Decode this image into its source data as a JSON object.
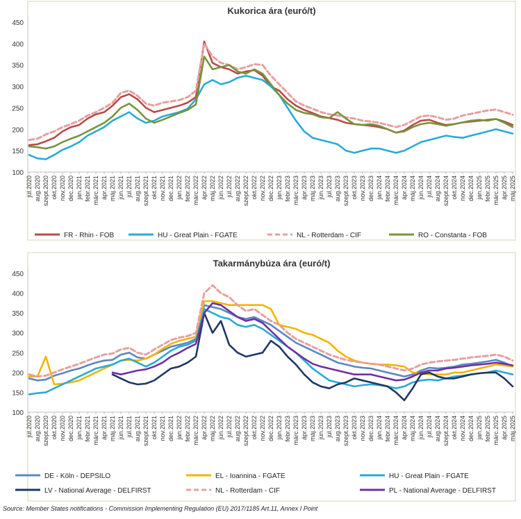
{
  "chart_data": [
    {
      "type": "line",
      "title": "Kukorica ára (euró/t)",
      "ylim": [
        100,
        450
      ],
      "yticks": [
        100,
        150,
        200,
        250,
        300,
        350,
        400,
        450
      ],
      "xlabels": [
        "júl.2020",
        "aug.2020",
        "szept.2020",
        "okt.2020",
        "nov.2020",
        "dec.2020",
        "jan.2021",
        "febr.2021",
        "márc.2021",
        "ápr.2021",
        "máj.2021",
        "jún.2021",
        "júl.2021",
        "aug.2021",
        "szept.2021",
        "okt.2021",
        "nov.2021",
        "dec.2021",
        "jan.2022",
        "febr.2022",
        "márc.2022",
        "ápr.2022",
        "máj.2022",
        "jún.2022",
        "júl.2022",
        "aug.2022",
        "szept.2022",
        "okt.2022",
        "nov.2022",
        "dec.2022",
        "jan.2023",
        "febr.2023",
        "márc.2023",
        "ápr.2023",
        "máj.2023",
        "jún.2023",
        "júl.2023",
        "aug.2023",
        "szept.2023",
        "okt.2023",
        "nov.2023",
        "dec.2023",
        "jan.2024",
        "febr.2024",
        "márc.2024",
        "ápr.2024",
        "máj.2024",
        "jún.2024",
        "júl.2024",
        "aug.2024",
        "szept.2024",
        "okt.2024",
        "nov.2024",
        "dec.2024",
        "jan.2025",
        "febr.2025",
        "márc.2025",
        "ápr.2025",
        "máj.2025"
      ],
      "series": [
        {
          "name": "FR - Rhin - FOB",
          "color": "#b94a48",
          "style": "solid",
          "values": [
            163,
            165,
            172,
            180,
            195,
            205,
            210,
            225,
            235,
            240,
            255,
            275,
            282,
            270,
            250,
            240,
            245,
            250,
            255,
            262,
            275,
            405,
            355,
            345,
            340,
            330,
            335,
            338,
            325,
            300,
            290,
            270,
            255,
            245,
            238,
            230,
            226,
            222,
            215,
            212,
            210,
            208,
            205,
            200,
            192,
            197,
            210,
            220,
            222,
            215,
            210,
            212,
            216,
            218,
            220,
            222,
            224,
            218,
            210
          ]
        },
        {
          "name": "HU - Great Plain - FGATE",
          "color": "#29a9d8",
          "style": "solid",
          "values": [
            140,
            132,
            130,
            140,
            152,
            160,
            170,
            185,
            195,
            205,
            220,
            230,
            240,
            225,
            215,
            220,
            230,
            235,
            240,
            248,
            270,
            305,
            315,
            305,
            310,
            320,
            325,
            320,
            315,
            300,
            280,
            250,
            220,
            195,
            180,
            175,
            170,
            165,
            150,
            145,
            150,
            155,
            155,
            150,
            145,
            150,
            160,
            170,
            175,
            180,
            185,
            182,
            180,
            185,
            190,
            195,
            200,
            195,
            190
          ]
        },
        {
          "name": "NL - Rotterdam - CIF",
          "color": "#e5a09e",
          "style": "dashed",
          "values": [
            175,
            178,
            188,
            195,
            205,
            212,
            220,
            232,
            240,
            250,
            262,
            285,
            290,
            278,
            260,
            255,
            262,
            265,
            268,
            275,
            290,
            400,
            370,
            355,
            350,
            340,
            345,
            352,
            350,
            325,
            305,
            285,
            265,
            255,
            248,
            240,
            235,
            232,
            228,
            225,
            220,
            218,
            215,
            210,
            205,
            210,
            220,
            230,
            232,
            228,
            222,
            225,
            232,
            236,
            240,
            244,
            246,
            240,
            234
          ]
        },
        {
          "name": "RO - Constanta - FOB",
          "color": "#77933c",
          "style": "solid",
          "values": [
            160,
            158,
            155,
            160,
            170,
            178,
            185,
            195,
            205,
            215,
            230,
            250,
            260,
            245,
            225,
            215,
            222,
            230,
            238,
            245,
            258,
            370,
            340,
            345,
            350,
            335,
            330,
            340,
            330,
            305,
            280,
            260,
            245,
            238,
            235,
            228,
            226,
            240,
            225,
            212,
            210,
            212,
            208,
            200,
            192,
            195,
            205,
            212,
            215,
            212,
            208,
            212,
            216,
            220,
            222,
            220,
            224,
            215,
            205
          ]
        }
      ]
    },
    {
      "type": "line",
      "title": "Takarmánybúza ára (euró/t)",
      "ylim": [
        100,
        450
      ],
      "yticks": [
        100,
        150,
        200,
        250,
        300,
        350,
        400,
        450
      ],
      "xlabels": [
        "júl.2020",
        "aug.2020",
        "szept.2020",
        "okt.2020",
        "nov.2020",
        "dec.2020",
        "jan.2021",
        "febr.2021",
        "márc.2021",
        "ápr.2021",
        "máj.2021",
        "jún.2021",
        "júl.2021",
        "aug.2021",
        "szept.2021",
        "okt.2021",
        "nov.2021",
        "dec.2021",
        "jan.2022",
        "febr.2022",
        "márc.2022",
        "ápr.2022",
        "máj.2022",
        "jún.2022",
        "júl.2022",
        "aug.2022",
        "szept.2022",
        "okt.2022",
        "nov.2022",
        "dec.2022",
        "jan.2023",
        "febr.2023",
        "márc.2023",
        "ápr.2023",
        "máj.2023",
        "jún.2023",
        "júl.2023",
        "aug.2023",
        "szept.2023",
        "okt.2023",
        "nov.2023",
        "dec.2023",
        "jan.2024",
        "febr.2024",
        "márc.2024",
        "ápr.2024",
        "máj.2024",
        "jún.2024",
        "júl.2024",
        "aug.2024",
        "szept.2024",
        "okt.2024",
        "nov.2024",
        "dec.2024",
        "jan.2025",
        "febr.2025",
        "márc.2025",
        "ápr.2025",
        "máj.2025"
      ],
      "series": [
        {
          "name": "DE - Köln - DEPSILO",
          "color": "#5b87c0",
          "style": "solid",
          "values": [
            185,
            180,
            182,
            192,
            198,
            205,
            210,
            218,
            225,
            230,
            232,
            245,
            250,
            238,
            235,
            245,
            255,
            265,
            270,
            275,
            285,
            370,
            365,
            360,
            350,
            340,
            335,
            340,
            330,
            320,
            305,
            290,
            275,
            265,
            255,
            245,
            235,
            225,
            220,
            215,
            212,
            210,
            205,
            200,
            195,
            190,
            195,
            205,
            212,
            210,
            212,
            215,
            220,
            222,
            225,
            228,
            232,
            225,
            215
          ]
        },
        {
          "name": "EL - Ioannina - FGATE",
          "color": "#f4b400",
          "style": "solid",
          "values": [
            190,
            190,
            240,
            170,
            172,
            175,
            180,
            190,
            200,
            210,
            220,
            230,
            232,
            230,
            235,
            245,
            260,
            272,
            280,
            285,
            290,
            380,
            380,
            375,
            370,
            370,
            370,
            370,
            370,
            360,
            320,
            315,
            310,
            300,
            295,
            285,
            275,
            255,
            240,
            230,
            225,
            222,
            220,
            220,
            218,
            215,
            200,
            198,
            195,
            195,
            195,
            200,
            200,
            205,
            210,
            215,
            220,
            218,
            215
          ]
        },
        {
          "name": "HU - Great Plain - FGATE",
          "color": "#29a9d8",
          "style": "solid",
          "values": [
            145,
            148,
            150,
            160,
            170,
            180,
            190,
            200,
            210,
            215,
            220,
            230,
            235,
            225,
            215,
            225,
            240,
            255,
            265,
            270,
            280,
            360,
            350,
            340,
            335,
            320,
            315,
            320,
            310,
            295,
            280,
            265,
            250,
            230,
            210,
            195,
            180,
            175,
            170,
            165,
            168,
            170,
            168,
            165,
            160,
            165,
            175,
            180,
            182,
            180,
            185,
            190,
            192,
            195,
            198,
            200,
            205,
            200,
            195
          ]
        },
        {
          "name": "LV - National Average - DELFIRST",
          "color": "#1f3864",
          "style": "solid",
          "values": [
            null,
            null,
            null,
            null,
            null,
            null,
            null,
            null,
            null,
            null,
            195,
            185,
            175,
            170,
            172,
            180,
            195,
            210,
            215,
            225,
            240,
            350,
            300,
            330,
            270,
            250,
            240,
            245,
            250,
            280,
            265,
            240,
            220,
            195,
            175,
            165,
            160,
            170,
            175,
            185,
            180,
            175,
            170,
            165,
            150,
            130,
            160,
            195,
            200,
            190,
            185,
            185,
            190,
            195,
            198,
            200,
            200,
            185,
            165
          ]
        },
        {
          "name": "NL - Rotterdam - CIF",
          "color": "#e5a09e",
          "style": "dashed",
          "values": [
            195,
            190,
            192,
            200,
            208,
            215,
            222,
            230,
            238,
            245,
            248,
            258,
            262,
            250,
            245,
            258,
            270,
            282,
            288,
            292,
            300,
            400,
            420,
            400,
            390,
            370,
            355,
            360,
            345,
            330,
            320,
            300,
            285,
            275,
            265,
            255,
            245,
            238,
            232,
            228,
            225,
            222,
            220,
            215,
            210,
            205,
            210,
            220,
            225,
            228,
            230,
            232,
            235,
            238,
            240,
            242,
            245,
            240,
            230
          ]
        },
        {
          "name": "PL - National Average - DELFIRST",
          "color": "#7030a0",
          "style": "solid",
          "values": [
            null,
            null,
            null,
            null,
            null,
            null,
            null,
            null,
            null,
            null,
            200,
            195,
            200,
            205,
            208,
            215,
            225,
            240,
            250,
            262,
            272,
            350,
            375,
            370,
            355,
            340,
            330,
            335,
            325,
            305,
            285,
            265,
            250,
            235,
            222,
            215,
            210,
            205,
            200,
            195,
            195,
            195,
            190,
            185,
            180,
            182,
            190,
            200,
            205,
            205,
            210,
            212,
            215,
            218,
            220,
            222,
            225,
            222,
            218
          ]
        }
      ]
    }
  ],
  "source": "Source: Member States notifications - Commission Implementing Regulation (EU) 2017/1185 Art.11, Annex I Point"
}
